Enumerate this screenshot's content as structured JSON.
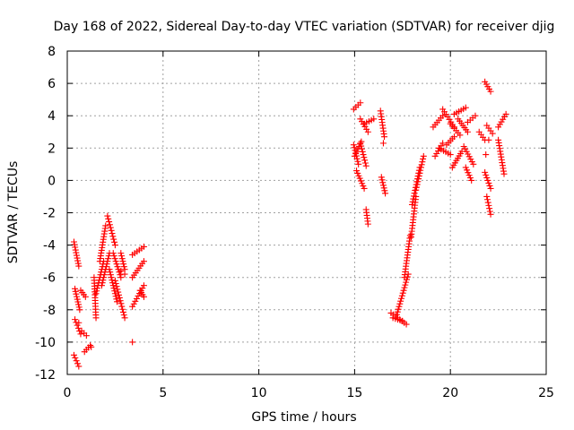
{
  "chart_data": {
    "type": "scatter",
    "title": "Day 168 of 2022, Sidereal Day-to-day VTEC variation (SDTVAR) for receiver djig",
    "xlabel": "GPS time / hours",
    "ylabel": "SDTVAR / TECUs",
    "xlim": [
      0,
      25
    ],
    "ylim": [
      -12,
      8
    ],
    "xticks": [
      0,
      5,
      10,
      15,
      20,
      25
    ],
    "yticks": [
      -12,
      -10,
      -8,
      -6,
      -4,
      -2,
      0,
      2,
      4,
      6,
      8
    ],
    "xtick_labels": [
      "0",
      "5",
      "10",
      "15",
      "20",
      "25"
    ],
    "ytick_labels": [
      "-12",
      "-10",
      "-8",
      "-6",
      "-4",
      "-2",
      "0",
      "2",
      "4",
      "6",
      "8"
    ],
    "grid": true,
    "marker": "+",
    "marker_color": "#ff0000",
    "segments": [
      {
        "x0": 0.35,
        "x1": 0.6,
        "y0": -3.8,
        "y1": -5.3
      },
      {
        "x0": 0.4,
        "x1": 0.65,
        "y0": -6.7,
        "y1": -8.0
      },
      {
        "x0": 0.4,
        "x1": 0.7,
        "y0": -8.6,
        "y1": -9.5
      },
      {
        "x0": 0.35,
        "x1": 0.6,
        "y0": -10.8,
        "y1": -11.5
      },
      {
        "x0": 0.75,
        "x1": 1.0,
        "y0": -9.3,
        "y1": -9.6
      },
      {
        "x0": 0.7,
        "x1": 0.95,
        "y0": -6.8,
        "y1": -7.2
      },
      {
        "x0": 0.9,
        "x1": 1.2,
        "y0": -10.6,
        "y1": -10.2
      },
      {
        "x0": 1.4,
        "x1": 1.5,
        "y0": -6.0,
        "y1": -8.5
      },
      {
        "x0": 1.5,
        "x1": 1.9,
        "y0": -7.0,
        "y1": -5.0
      },
      {
        "x0": 1.7,
        "x1": 2.0,
        "y0": -5.0,
        "y1": -2.8
      },
      {
        "x0": 1.8,
        "x1": 2.2,
        "y0": -6.5,
        "y1": -4.5
      },
      {
        "x0": 2.1,
        "x1": 2.5,
        "y0": -2.2,
        "y1": -4.0
      },
      {
        "x0": 2.2,
        "x1": 2.6,
        "y0": -5.5,
        "y1": -7.5
      },
      {
        "x0": 2.4,
        "x1": 2.8,
        "y0": -4.5,
        "y1": -6.0
      },
      {
        "x0": 2.5,
        "x1": 3.0,
        "y0": -6.2,
        "y1": -8.5
      },
      {
        "x0": 2.8,
        "x1": 3.0,
        "y0": -4.5,
        "y1": -5.5
      },
      {
        "x0": 3.4,
        "x1": 4.0,
        "y0": -4.6,
        "y1": -4.1
      },
      {
        "x0": 3.4,
        "x1": 4.0,
        "y0": -6.0,
        "y1": -5.0
      },
      {
        "x0": 3.4,
        "x1": 4.0,
        "y0": -7.8,
        "y1": -6.5
      },
      {
        "x0": 3.8,
        "x1": 4.0,
        "y0": -6.8,
        "y1": -7.2
      },
      {
        "x0": 14.95,
        "x1": 15.3,
        "y0": 4.4,
        "y1": 4.8
      },
      {
        "x0": 14.95,
        "x1": 15.2,
        "y0": 2.2,
        "y1": 1.0
      },
      {
        "x0": 15.0,
        "x1": 15.35,
        "y0": 1.5,
        "y1": 2.4
      },
      {
        "x0": 15.1,
        "x1": 15.5,
        "y0": 0.6,
        "y1": -0.5
      },
      {
        "x0": 15.3,
        "x1": 15.7,
        "y0": 3.8,
        "y1": 3.0
      },
      {
        "x0": 15.3,
        "x1": 15.6,
        "y0": 2.3,
        "y1": 0.9
      },
      {
        "x0": 15.5,
        "x1": 16.0,
        "y0": 3.5,
        "y1": 3.8
      },
      {
        "x0": 15.6,
        "x1": 15.7,
        "y0": -1.8,
        "y1": -2.7
      },
      {
        "x0": 16.35,
        "x1": 16.55,
        "y0": 4.3,
        "y1": 2.7
      },
      {
        "x0": 16.4,
        "x1": 16.6,
        "y0": 0.2,
        "y1": -0.8
      },
      {
        "x0": 16.9,
        "x1": 17.7,
        "y0": -8.2,
        "y1": -8.9
      },
      {
        "x0": 17.0,
        "x1": 17.5,
        "y0": -8.5,
        "y1": -8.7
      },
      {
        "x0": 17.2,
        "x1": 17.8,
        "y0": -8.3,
        "y1": -5.8
      },
      {
        "x0": 17.6,
        "x1": 17.9,
        "y0": -6.0,
        "y1": -3.4
      },
      {
        "x0": 17.95,
        "x1": 18.2,
        "y0": -3.5,
        "y1": -1.0
      },
      {
        "x0": 18.0,
        "x1": 18.4,
        "y0": -1.5,
        "y1": 0.8
      },
      {
        "x0": 18.2,
        "x1": 18.6,
        "y0": -0.6,
        "y1": 1.5
      },
      {
        "x0": 19.1,
        "x1": 19.6,
        "y0": 3.3,
        "y1": 4.0
      },
      {
        "x0": 19.2,
        "x1": 19.6,
        "y0": 1.5,
        "y1": 2.3
      },
      {
        "x0": 19.4,
        "x1": 20.0,
        "y0": 2.0,
        "y1": 1.6
      },
      {
        "x0": 19.6,
        "x1": 20.2,
        "y0": 4.4,
        "y1": 3.3
      },
      {
        "x0": 19.8,
        "x1": 20.2,
        "y0": 2.2,
        "y1": 2.7
      },
      {
        "x0": 20.0,
        "x1": 20.5,
        "y0": 3.5,
        "y1": 2.8
      },
      {
        "x0": 20.1,
        "x1": 20.6,
        "y0": 0.8,
        "y1": 1.8
      },
      {
        "x0": 20.2,
        "x1": 20.8,
        "y0": 4.1,
        "y1": 4.5
      },
      {
        "x0": 20.4,
        "x1": 20.9,
        "y0": 3.8,
        "y1": 3.0
      },
      {
        "x0": 20.7,
        "x1": 21.2,
        "y0": 2.1,
        "y1": 1.0
      },
      {
        "x0": 20.8,
        "x1": 21.1,
        "y0": 0.8,
        "y1": 0.0
      },
      {
        "x0": 20.9,
        "x1": 21.3,
        "y0": 3.6,
        "y1": 4.0
      },
      {
        "x0": 21.5,
        "x1": 21.8,
        "y0": 3.0,
        "y1": 2.5
      },
      {
        "x0": 21.8,
        "x1": 22.1,
        "y0": 6.1,
        "y1": 5.5
      },
      {
        "x0": 21.8,
        "x1": 22.1,
        "y0": 0.5,
        "y1": -0.5
      },
      {
        "x0": 21.9,
        "x1": 22.1,
        "y0": -1.0,
        "y1": -2.1
      },
      {
        "x0": 21.9,
        "x1": 22.2,
        "y0": 3.4,
        "y1": 2.9
      },
      {
        "x0": 22.5,
        "x1": 22.8,
        "y0": 2.5,
        "y1": 0.4
      },
      {
        "x0": 22.5,
        "x1": 22.9,
        "y0": 3.3,
        "y1": 4.1
      }
    ],
    "isolated_points": [
      {
        "x": 0.6,
        "y": -8.8
      },
      {
        "x": 1.25,
        "y": -10.3
      },
      {
        "x": 2.8,
        "y": -5.6
      },
      {
        "x": 3.4,
        "y": -10.0
      },
      {
        "x": 3.0,
        "y": -5.8
      },
      {
        "x": 16.5,
        "y": 2.3
      },
      {
        "x": 21.85,
        "y": 1.6
      },
      {
        "x": 22.0,
        "y": 2.5
      }
    ]
  }
}
